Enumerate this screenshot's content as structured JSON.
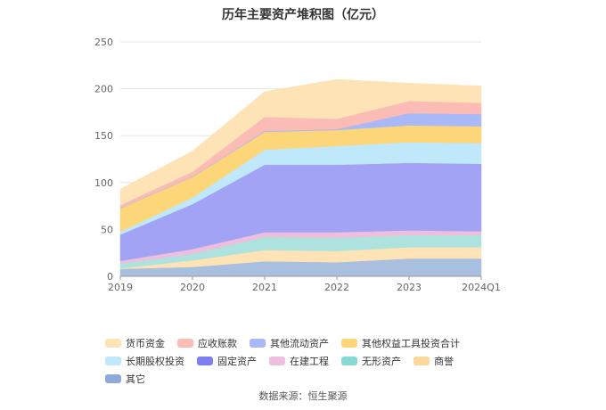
{
  "chart_data": {
    "type": "area",
    "stacked": true,
    "title": "历年主要资产堆积图（亿元）",
    "categories": [
      "2019",
      "2020",
      "2021",
      "2022",
      "2023",
      "2024Q1"
    ],
    "ylim": [
      0,
      250
    ],
    "yticks": [
      0,
      50,
      100,
      150,
      200,
      250
    ],
    "grid": true,
    "legend_position": "bottom",
    "series": [
      {
        "name": "其它",
        "color": "#a9bfe0",
        "values": [
          8,
          10,
          16,
          15,
          19,
          19
        ]
      },
      {
        "name": "商誉",
        "color": "#fde3b5",
        "values": [
          0.5,
          7,
          12,
          12,
          12,
          12
        ]
      },
      {
        "name": "无形资产",
        "color": "#aee2de",
        "values": [
          5,
          7,
          14,
          14,
          13,
          13
        ]
      },
      {
        "name": "在建工程",
        "color": "#eebedd",
        "values": [
          3,
          5,
          5,
          6,
          5,
          4
        ]
      },
      {
        "name": "固定资产",
        "color": "#a3a3f5",
        "values": [
          28,
          48,
          72,
          72,
          72,
          72
        ]
      },
      {
        "name": "长期股权投资",
        "color": "#bfe8fa",
        "values": [
          3,
          7,
          16,
          20,
          22,
          22
        ]
      },
      {
        "name": "其他权益工具投资合计",
        "color": "#fdd67a",
        "values": [
          25,
          22,
          19,
          17,
          18,
          18
        ]
      },
      {
        "name": "其他流动资产",
        "color": "#a9b8f7",
        "values": [
          0.5,
          0.5,
          1,
          1,
          13,
          13
        ]
      },
      {
        "name": "应收账款",
        "color": "#fbbcb6",
        "values": [
          3,
          5,
          15,
          11,
          13,
          12
        ]
      },
      {
        "name": "货币资金",
        "color": "#fde3b5",
        "values": [
          17,
          22,
          27,
          42,
          19,
          18
        ]
      }
    ]
  },
  "legend": {
    "items": [
      {
        "label": "货币资金",
        "color": "#fde3b5"
      },
      {
        "label": "应收账款",
        "color": "#fbbcb6"
      },
      {
        "label": "其他流动资产",
        "color": "#a9b8f7"
      },
      {
        "label": "其他权益工具投资合计",
        "color": "#fdd67a"
      },
      {
        "label": "长期股权投资",
        "color": "#bfe8fa"
      },
      {
        "label": "固定资产",
        "color": "#7f7ff0"
      },
      {
        "label": "在建工程",
        "color": "#eebedd"
      },
      {
        "label": "无形资产",
        "color": "#86d8d2"
      },
      {
        "label": "商誉",
        "color": "#fcd89c"
      },
      {
        "label": "其它",
        "color": "#8fa9d9"
      }
    ]
  },
  "source": "数据来源：恒生聚源"
}
